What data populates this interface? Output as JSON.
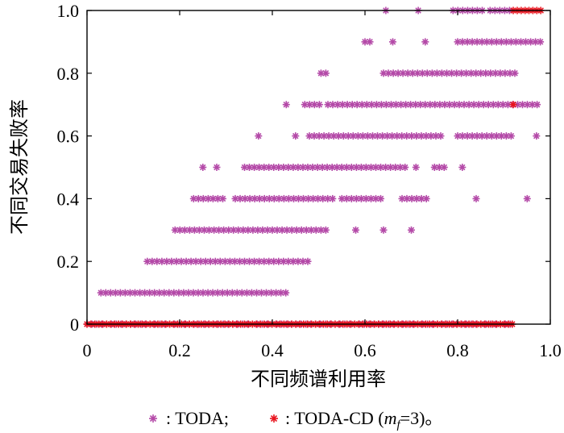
{
  "chart_data": {
    "type": "scatter",
    "xlabel": "不同频谱利用率",
    "ylabel": "不同交易失败率",
    "xlim": [
      0,
      1.0
    ],
    "ylim": [
      0,
      1.0
    ],
    "x_ticks": [
      "0",
      "0.2",
      "0.4",
      "0.6",
      "0.8",
      "1.0"
    ],
    "y_ticks": [
      "0",
      "0.2",
      "0.4",
      "0.6",
      "0.8",
      "1.0"
    ],
    "x_tick_values": [
      0,
      0.2,
      0.4,
      0.6,
      0.8,
      1.0
    ],
    "y_tick_values": [
      0,
      0.2,
      0.4,
      0.6,
      0.8,
      1.0
    ],
    "grid": false,
    "legend": {
      "placement": "bottom",
      "items": [
        {
          "marker": "*",
          "color": "#b44aa8",
          "label": ": TODA;"
        },
        {
          "marker": "*",
          "color": "#e8141e",
          "label_prefix": ": TODA-CD (",
          "label_var": "m",
          "label_sub": "f",
          "label_suffix": "=3)。"
        }
      ]
    },
    "colors": {
      "toda": "#b44aa8",
      "toda_cd": "#e8141e"
    },
    "series": [
      {
        "name": "TODA",
        "color": "#b44aa8",
        "rows": [
          {
            "y": 1.0,
            "x_ranges": [
              [
                0.645,
                0.65
              ],
              [
                0.715,
                0.72
              ],
              [
                0.79,
                0.86
              ],
              [
                0.87,
                0.92
              ]
            ]
          },
          {
            "y": 0.9,
            "x_ranges": [
              [
                0.6,
                0.62
              ],
              [
                0.66,
                0.67
              ],
              [
                0.73,
                0.74
              ],
              [
                0.8,
                0.98
              ]
            ]
          },
          {
            "y": 0.8,
            "x_ranges": [
              [
                0.505,
                0.52
              ],
              [
                0.64,
                0.93
              ]
            ]
          },
          {
            "y": 0.7,
            "x_ranges": [
              [
                0.43,
                0.44
              ],
              [
                0.47,
                0.51
              ],
              [
                0.52,
                0.98
              ]
            ]
          },
          {
            "y": 0.6,
            "x_ranges": [
              [
                0.37,
                0.38
              ],
              [
                0.45,
                0.46
              ],
              [
                0.48,
                0.77
              ],
              [
                0.8,
                0.92
              ],
              [
                0.97,
                0.98
              ]
            ]
          },
          {
            "y": 0.5,
            "x_ranges": [
              [
                0.25,
                0.26
              ],
              [
                0.28,
                0.29
              ],
              [
                0.34,
                0.69
              ],
              [
                0.71,
                0.72
              ],
              [
                0.75,
                0.78
              ],
              [
                0.81,
                0.82
              ]
            ]
          },
          {
            "y": 0.4,
            "x_ranges": [
              [
                0.23,
                0.3
              ],
              [
                0.32,
                0.53
              ],
              [
                0.55,
                0.64
              ],
              [
                0.68,
                0.74
              ],
              [
                0.84,
                0.85
              ],
              [
                0.95,
                0.96
              ]
            ]
          },
          {
            "y": 0.3,
            "x_ranges": [
              [
                0.19,
                0.52
              ],
              [
                0.58,
                0.59
              ],
              [
                0.64,
                0.65
              ],
              [
                0.7,
                0.71
              ]
            ]
          },
          {
            "y": 0.2,
            "x_ranges": [
              [
                0.13,
                0.48
              ]
            ]
          },
          {
            "y": 0.1,
            "x_ranges": [
              [
                0.03,
                0.43
              ]
            ]
          },
          {
            "y": 0.0,
            "x_ranges": [
              [
                0.0,
                0.92
              ]
            ]
          }
        ]
      },
      {
        "name": "TODA-CD",
        "color": "#e8141e",
        "rows": [
          {
            "y": 1.0,
            "x_ranges": [
              [
                0.92,
                0.98
              ]
            ]
          },
          {
            "y": 0.7,
            "x_ranges": [
              [
                0.92,
                0.92
              ]
            ]
          },
          {
            "y": 0.0,
            "x_ranges": [
              [
                0.0,
                0.92
              ]
            ]
          }
        ]
      }
    ]
  }
}
